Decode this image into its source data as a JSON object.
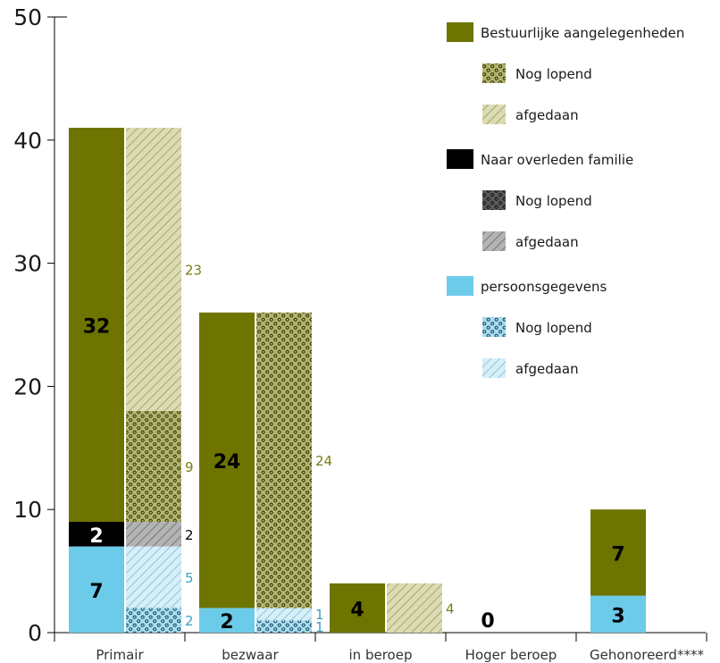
{
  "chart_data": {
    "type": "bar",
    "subtype": "grouped-stacked",
    "ylim": [
      0,
      50
    ],
    "yticks": [
      0,
      10,
      20,
      30,
      40,
      50
    ],
    "categories": [
      "Primair",
      "bezwaar",
      "in beroep",
      "Hoger beroep",
      "Gehonoreerd****"
    ],
    "total_bar": {
      "segments_order": [
        "persoonsgegevens",
        "Naar overleden familie",
        "Bestuurlijke aangelegenheden"
      ],
      "values": {
        "persoonsgegevens": [
          7,
          2,
          0,
          0,
          3
        ],
        "Naar overleden familie": [
          2,
          0,
          0,
          0,
          0
        ],
        "Bestuurlijke aangelegenheden": [
          32,
          24,
          4,
          0,
          7
        ]
      },
      "zero_labels": [
        "",
        "",
        "",
        "0",
        ""
      ]
    },
    "status_bar": {
      "present": [
        true,
        true,
        true,
        false,
        false
      ],
      "stacks": [
        [
          {
            "group": "persoonsgegevens",
            "status": "Nog lopend",
            "value": 2
          },
          {
            "group": "persoonsgegevens",
            "status": "afgedaan",
            "value": 5
          },
          {
            "group": "Naar overleden familie",
            "status": "afgedaan",
            "value": 2
          },
          {
            "group": "Bestuurlijke aangelegenheden",
            "status": "Nog lopend",
            "value": 9
          },
          {
            "group": "Bestuurlijke aangelegenheden",
            "status": "afgedaan",
            "value": 23
          }
        ],
        [
          {
            "group": "persoonsgegevens",
            "status": "Nog lopend",
            "value": 1
          },
          {
            "group": "persoonsgegevens",
            "status": "afgedaan",
            "value": 1
          },
          {
            "group": "Bestuurlijke aangelegenheden",
            "status": "Nog lopend",
            "value": 24
          }
        ],
        [
          {
            "group": "Bestuurlijke aangelegenheden",
            "status": "afgedaan",
            "value": 4
          }
        ],
        [],
        []
      ]
    },
    "legend": [
      {
        "name": "Bestuurlijke aangelegenheden",
        "sub": [
          "Nog lopend",
          "afgedaan"
        ]
      },
      {
        "name": "Naar overleden familie",
        "sub": [
          "Nog lopend",
          "afgedaan"
        ]
      },
      {
        "name": "persoonsgegevens",
        "sub": [
          "Nog lopend",
          "afgedaan"
        ]
      }
    ],
    "legend_position": "top-right",
    "grid": false,
    "colors": {
      "Bestuurlijke aangelegenheden": "#6e7400",
      "Naar overleden familie": "#000000",
      "persoonsgegevens": "#6ccbe9",
      "Bestuurlijke aangelegenheden_light": "#b2b56e",
      "Bestuurlijke aangelegenheden_hatch": "#dbdcb5",
      "Naar overleden familie_light": "#a6a6a6",
      "persoonsgegevens_light": "#b9e3f2",
      "label_Bestuurlijke aangelegenheden": "#7b7d14",
      "label_Naar overleden familie": "#000000",
      "label_persoonsgegevens": "#3a9fc4"
    }
  }
}
